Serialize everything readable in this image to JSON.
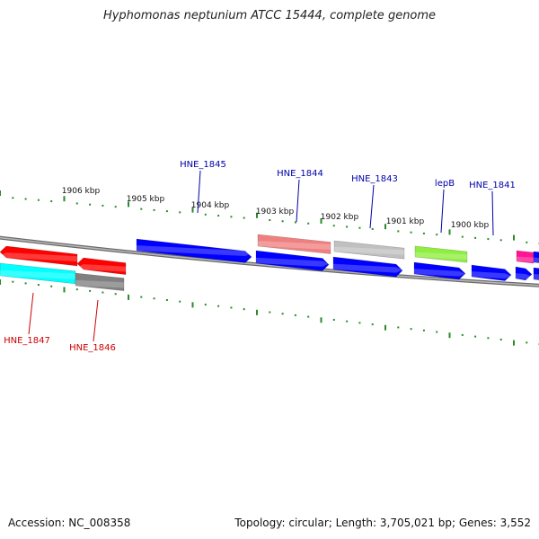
{
  "title": "Hyphomonas neptunium ATCC 15444, complete genome",
  "accession": "Accession: NC_008358",
  "summary": "Topology: circular; Length: 3,705,021 bp; Genes: 3,552",
  "colors": {
    "tick": "#2a8a2a",
    "backbone": "#808080",
    "label_forward": "#0000aa",
    "label_reverse": "#cc0000",
    "scale_text": "#111111"
  },
  "scale_labels": [
    {
      "kbp": 1906,
      "label": "1906 kbp"
    },
    {
      "kbp": 1905,
      "label": "1905 kbp"
    },
    {
      "kbp": 1904,
      "label": "1904 kbp"
    },
    {
      "kbp": 1903,
      "label": "1903 kbp"
    },
    {
      "kbp": 1902,
      "label": "1902 kbp"
    },
    {
      "kbp": 1901,
      "label": "1901 kbp"
    },
    {
      "kbp": 1900,
      "label": "1900 kbp"
    }
  ],
  "gene_labels": [
    {
      "name": "HNE_1845",
      "strand": "forward"
    },
    {
      "name": "HNE_1844",
      "strand": "forward"
    },
    {
      "name": "HNE_1843",
      "strand": "forward"
    },
    {
      "name": "lepB",
      "strand": "forward"
    },
    {
      "name": "HNE_1841",
      "strand": "forward"
    },
    {
      "name": "HNE_1847",
      "strand": "reverse"
    },
    {
      "name": "HNE_1846",
      "strand": "reverse"
    }
  ],
  "features": [
    {
      "track": "outer-reverse",
      "color": "#ff0000",
      "direction": "left"
    },
    {
      "track": "outer-reverse",
      "color": "#ff0000",
      "direction": "left"
    },
    {
      "track": "outer-forward",
      "color": "#0000ff",
      "direction": "right"
    },
    {
      "track": "outer-forward",
      "color": "#f08080",
      "direction": "none"
    },
    {
      "track": "outer-forward",
      "color": "#c0c0c0",
      "direction": "none"
    },
    {
      "track": "outer-forward",
      "color": "#90ee40",
      "direction": "none"
    },
    {
      "track": "outer-forward",
      "color": "#ff1493",
      "direction": "none"
    },
    {
      "track": "outer-forward",
      "color": "#0000ff",
      "direction": "none"
    },
    {
      "track": "inner-forward",
      "color": "#00ffff",
      "direction": "none"
    },
    {
      "track": "inner-forward",
      "color": "#808080",
      "direction": "none"
    },
    {
      "track": "inner-forward",
      "color": "#0000ff",
      "direction": "right"
    },
    {
      "track": "inner-forward",
      "color": "#0000ff",
      "direction": "right"
    },
    {
      "track": "inner-forward",
      "color": "#0000ff",
      "direction": "right"
    },
    {
      "track": "inner-forward",
      "color": "#0000ff",
      "direction": "right"
    },
    {
      "track": "inner-forward",
      "color": "#0000ff",
      "direction": "right"
    },
    {
      "track": "inner-forward",
      "color": "#0000ff",
      "direction": "none"
    }
  ]
}
